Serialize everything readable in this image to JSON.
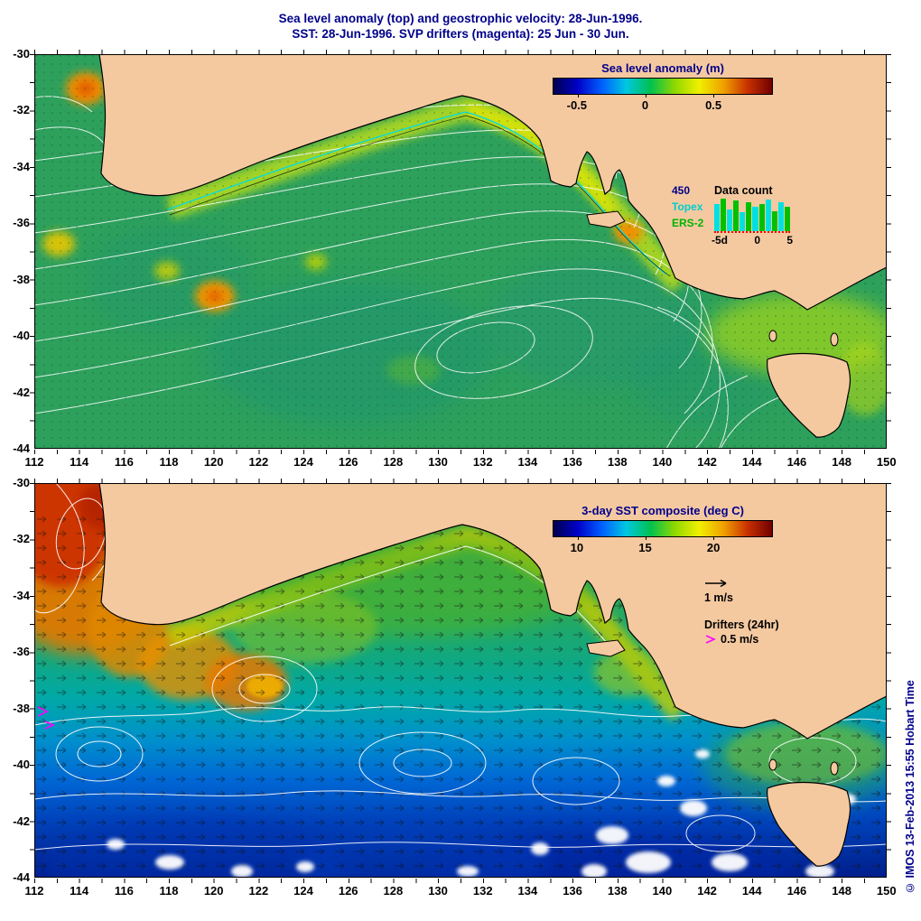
{
  "title": {
    "line1": "Sea level anomaly (top) and geostrophic velocity: 28-Jun-1996.",
    "line2": "SST: 28-Jun-1996. SVP drifters (magenta): 25 Jun - 30 Jun."
  },
  "axis": {
    "x": [
      "112",
      "114",
      "116",
      "118",
      "120",
      "122",
      "124",
      "126",
      "128",
      "130",
      "132",
      "134",
      "136",
      "138",
      "140",
      "142",
      "144",
      "146",
      "148",
      "150"
    ],
    "y": [
      "-30",
      "-32",
      "-34",
      "-36",
      "-38",
      "-40",
      "-42",
      "-44"
    ]
  },
  "top_panel": {
    "colorbar": {
      "title": "Sea level anomaly (m)",
      "ticks": [
        "-0.5",
        "0",
        "0.5"
      ]
    },
    "data_count": {
      "title": "Data count",
      "y_max": "450",
      "series": [
        {
          "label": "Topex",
          "color": "#00cdcd"
        },
        {
          "label": "ERS-2",
          "color": "#00b400"
        }
      ],
      "x_ticks": [
        "-5d",
        "0",
        "5"
      ],
      "bars": [
        82,
        100,
        68,
        94,
        58,
        88,
        74,
        84,
        96,
        62,
        90,
        76
      ]
    }
  },
  "bottom_panel": {
    "colorbar": {
      "title": "3-day SST composite (deg C)",
      "ticks": [
        "10",
        "15",
        "20"
      ]
    },
    "legend": {
      "velocity": "1 m/s",
      "drifters": "Drifters (24hr)",
      "drifter_speed": "0.5 m/s"
    }
  },
  "watermark": "© IMOS 13-Feb-2013 15:55 Hobart Time",
  "colors": {
    "land": "#f5c9a0",
    "title_text": "#00008b",
    "topex": "#00cdcd",
    "ers2": "#00b400",
    "drifter": "#ff00ff"
  }
}
